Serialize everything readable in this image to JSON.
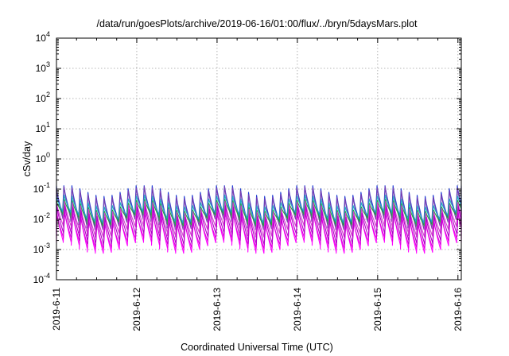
{
  "chart_data": {
    "type": "line",
    "title": "/data/run/goesPlots/archive/2019-06-16/01:00/flux/../bryn/5daysMars.plot",
    "xlabel": "Coordinated Universal Time (UTC)",
    "ylabel": "cSv/day",
    "y_scale": "log",
    "ylim": [
      0.0001,
      10000
    ],
    "y_ticks": [
      {
        "base": "10",
        "exp": "-4",
        "value": 0.0001
      },
      {
        "base": "10",
        "exp": "-3",
        "value": 0.001
      },
      {
        "base": "10",
        "exp": "-2",
        "value": 0.01
      },
      {
        "base": "10",
        "exp": "-1",
        "value": 0.1
      },
      {
        "base": "10",
        "exp": "0",
        "value": 1
      },
      {
        "base": "10",
        "exp": "1",
        "value": 10
      },
      {
        "base": "10",
        "exp": "2",
        "value": 100
      },
      {
        "base": "10",
        "exp": "3",
        "value": 1000
      },
      {
        "base": "10",
        "exp": "4",
        "value": 10000
      }
    ],
    "x_ticks": [
      "2019-6-11",
      "2019-6-12",
      "2019-6-13",
      "2019-6-14",
      "2019-6-15",
      "2019-6-16"
    ],
    "xlim": [
      "2019-06-11T00:00",
      "2019-06-16T01:00"
    ],
    "grid": true,
    "legend": "none",
    "cycle_hours": 2.4,
    "series_ranges": [
      {
        "color": "#1f3fd6",
        "peak": 0.1,
        "trough": 0.011
      },
      {
        "color": "#7a3fb0",
        "peak": 0.085,
        "trough": 0.008
      },
      {
        "color": "#20b0c8",
        "peak": 0.045,
        "trough": 0.013
      },
      {
        "color": "#22a83a",
        "peak": 0.032,
        "trough": 0.0105
      },
      {
        "color": "#d33fcf",
        "peak": 0.028,
        "trough": 0.0045
      },
      {
        "color": "#ff00ff",
        "peak": 0.015,
        "trough": 0.0013
      },
      {
        "color": "#e000e0",
        "peak": 0.012,
        "trough": 0.0018
      },
      {
        "color": "#b000c8",
        "peak": 0.02,
        "trough": 0.0025
      }
    ]
  }
}
